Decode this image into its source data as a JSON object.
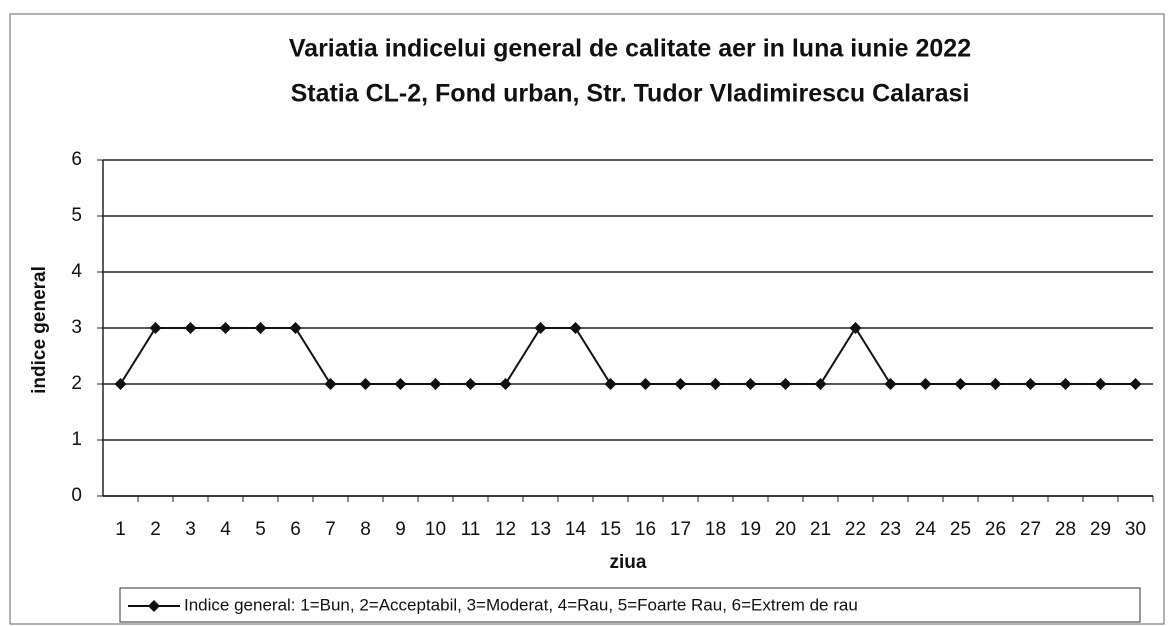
{
  "chart_data": {
    "type": "line",
    "title": "Variatia indicelui general de calitate aer in luna iunie 2022",
    "subtitle": "Statia CL-2, Fond urban,  Str. Tudor Vladimirescu Calarasi",
    "x_label": "ziua",
    "y_label": "indice general",
    "categories": [
      "1",
      "2",
      "3",
      "4",
      "5",
      "6",
      "7",
      "8",
      "9",
      "10",
      "11",
      "12",
      "13",
      "14",
      "15",
      "16",
      "17",
      "18",
      "19",
      "20",
      "21",
      "22",
      "23",
      "24",
      "25",
      "26",
      "27",
      "28",
      "29",
      "30"
    ],
    "series": [
      {
        "name": "Indice general: 1=Bun, 2=Acceptabil, 3=Moderat, 4=Rau, 5=Foarte Rau, 6=Extrem de rau",
        "color": "#111111",
        "values": [
          2,
          3,
          3,
          3,
          3,
          3,
          2,
          2,
          2,
          2,
          2,
          2,
          3,
          3,
          2,
          2,
          2,
          2,
          2,
          2,
          2,
          3,
          2,
          2,
          2,
          2,
          2,
          2,
          2,
          2
        ]
      }
    ],
    "ylim": [
      0,
      6
    ],
    "yticks": [
      0,
      1,
      2,
      3,
      4,
      5,
      6
    ],
    "grid": true,
    "legend": "bottom"
  }
}
